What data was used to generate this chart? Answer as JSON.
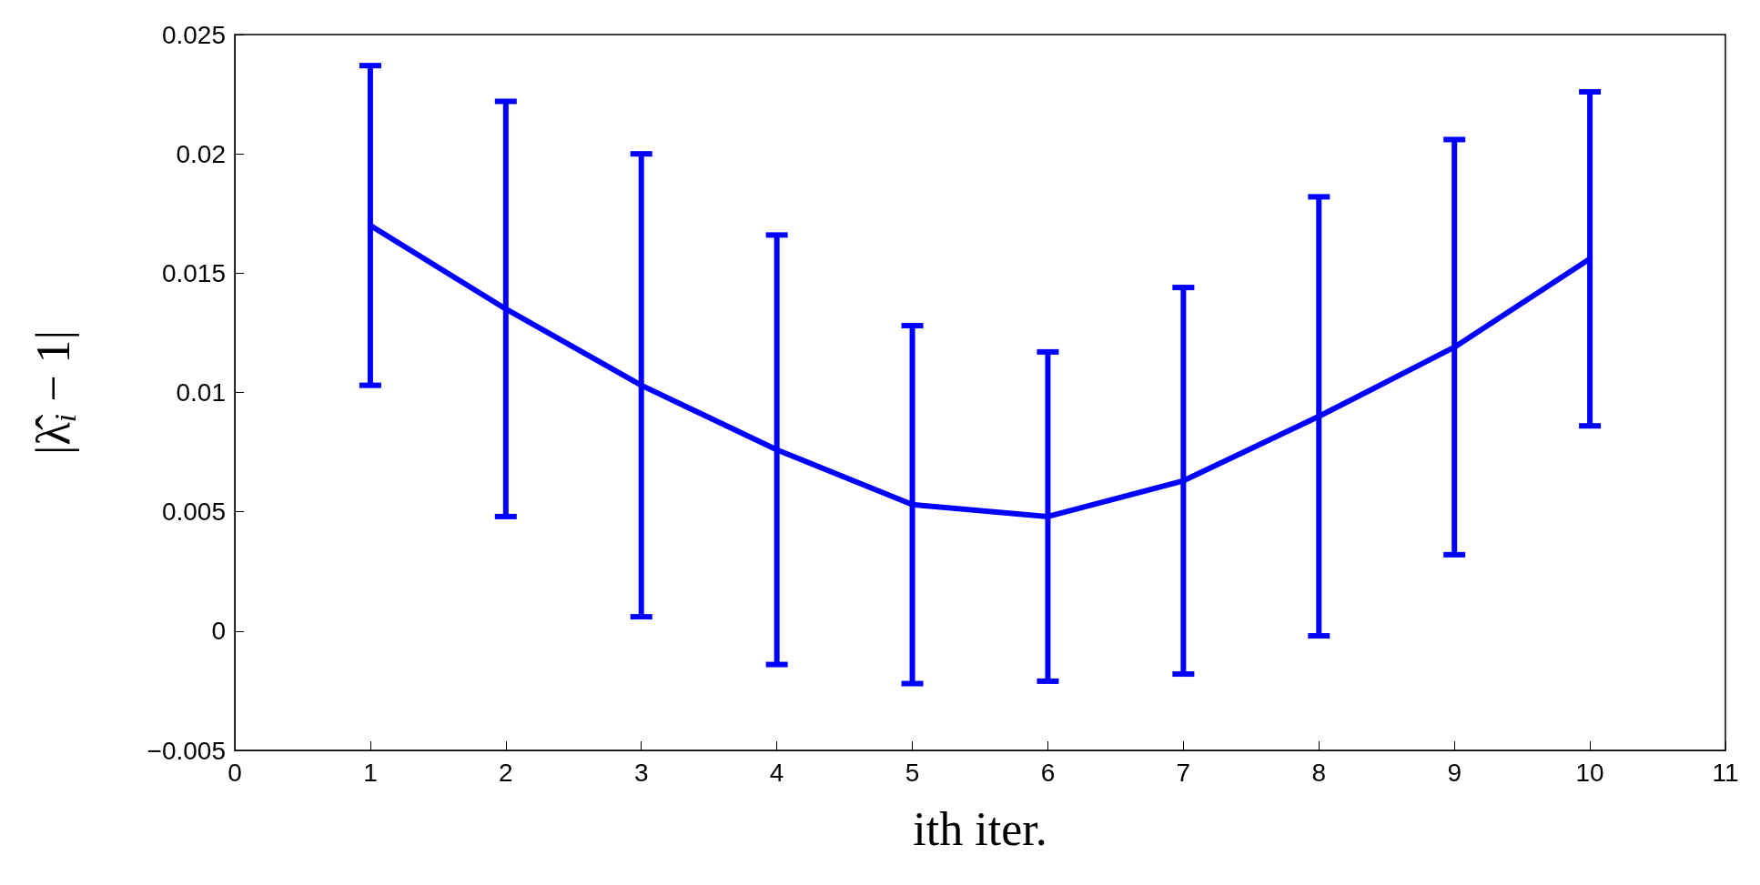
{
  "chart_data": {
    "type": "line",
    "xlabel": "ith iter.",
    "ylabel": "|λ̂$_{i}$ − 1|",
    "x": [
      1,
      2,
      3,
      4,
      5,
      6,
      7,
      8,
      9,
      10
    ],
    "values": [
      0.017,
      0.0135,
      0.0103,
      0.0076,
      0.0053,
      0.0048,
      0.0063,
      0.009,
      0.0119,
      0.0156
    ],
    "errors": [
      0.0067,
      0.0087,
      0.0097,
      0.009,
      0.0075,
      0.0069,
      0.0081,
      0.0092,
      0.0087,
      0.007
    ],
    "color": "#0000ff",
    "marker": "none",
    "line_style": "solid",
    "grid": false,
    "xlim": [
      0,
      11
    ],
    "xticks": [
      0,
      1,
      2,
      3,
      4,
      5,
      6,
      7,
      8,
      9,
      10,
      11
    ],
    "ylim": [
      -0.005,
      0.025
    ],
    "yticks": [
      {
        "value": -0.005,
        "label": "−0.005"
      },
      0,
      0.005,
      0.01,
      0.015,
      0.02,
      0.025
    ]
  }
}
